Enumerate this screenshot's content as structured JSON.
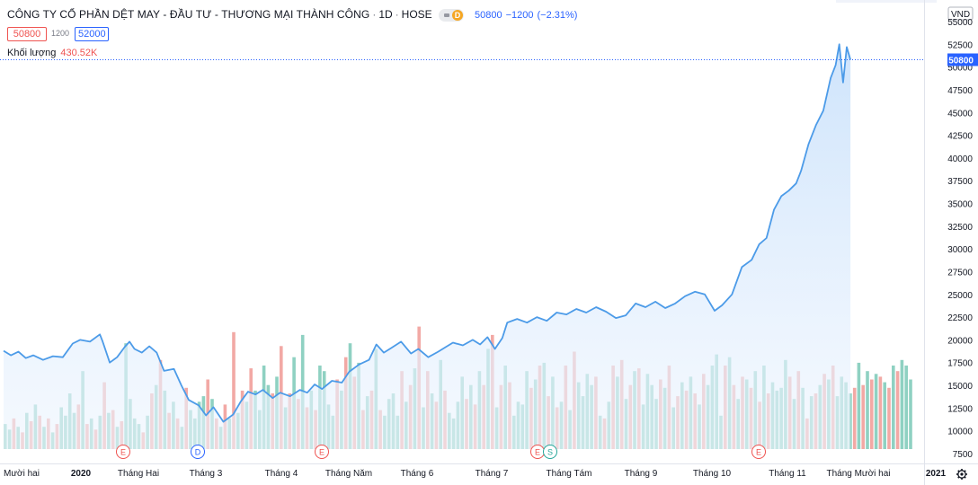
{
  "header": {
    "symbol_name": "CÔNG TY CỔ PHẦN DỆT MAY - ĐẦU TƯ - THƯƠNG MẠI THÀNH CÔNG",
    "interval": "1D",
    "exchange": "HOSE",
    "badge": "D",
    "last": "50800",
    "change": "−1200",
    "change_pct": "(−2.31%)",
    "bid": "50800",
    "spread": "1200",
    "ask": "52000",
    "volume_label": "Khối lượng",
    "volume_value": "430.52K"
  },
  "price_axis": {
    "currency": "VND",
    "current_price_label": "50800",
    "ticks": [
      "55000",
      "52500",
      "50000",
      "47500",
      "45000",
      "42500",
      "40000",
      "37500",
      "35000",
      "32500",
      "30000",
      "27500",
      "25000",
      "22500",
      "20000",
      "17500",
      "15000",
      "12500",
      "10000",
      "7500"
    ]
  },
  "time_axis": {
    "labels": [
      "Mười hai",
      "2020",
      "Tháng Hai",
      "Tháng 3",
      "Tháng 4",
      "Tháng Năm",
      "Tháng 6",
      "Tháng 7",
      "Tháng Tám",
      "Tháng 9",
      "Tháng 10",
      "Tháng 11",
      "Tháng Mười hai",
      "2021"
    ]
  },
  "events": [
    "E",
    "D",
    "E",
    "E",
    "S",
    "E"
  ],
  "colors": {
    "line": "#4c9be8",
    "area_top": "#c9e1fb",
    "area_bottom": "#eef5fe",
    "vol_up": "#8fd1c2",
    "vol_down": "#f2a9a5",
    "quote_blue": "#2962ff",
    "red": "#ef5350"
  },
  "chart_data": {
    "type": "line",
    "title": "CÔNG TY CỔ PHẦN DỆT MAY - ĐẦU TƯ - THƯƠNG MẠI THÀNH CÔNG · 1D · HOSE",
    "xlabel": "",
    "ylabel": "",
    "ylim": [
      7500,
      55000
    ],
    "grid": false,
    "x": [
      "2019-12",
      "2020-01",
      "2020-02",
      "2020-03",
      "2020-04",
      "2020-05",
      "2020-06",
      "2020-07",
      "2020-08",
      "2020-09",
      "2020-10",
      "2020-11",
      "2020-12",
      "2021-01"
    ],
    "price_path": [
      [
        0,
        18800
      ],
      [
        0.3,
        18300
      ],
      [
        0.6,
        18700
      ],
      [
        0.9,
        18000
      ],
      [
        1.2,
        18300
      ],
      [
        1.6,
        17800
      ],
      [
        2.0,
        18200
      ],
      [
        2.4,
        18100
      ],
      [
        2.8,
        19600
      ],
      [
        3.1,
        20000
      ],
      [
        3.5,
        19800
      ],
      [
        3.9,
        20600
      ],
      [
        4.0,
        19900
      ],
      [
        4.3,
        17500
      ],
      [
        4.6,
        18100
      ],
      [
        4.9,
        19200
      ],
      [
        5.1,
        19800
      ],
      [
        5.3,
        19000
      ],
      [
        5.6,
        18600
      ],
      [
        5.9,
        19300
      ],
      [
        6.2,
        18600
      ],
      [
        6.5,
        16600
      ],
      [
        6.9,
        16800
      ],
      [
        7.2,
        15000
      ],
      [
        7.5,
        13400
      ],
      [
        7.9,
        12800
      ],
      [
        8.2,
        11700
      ],
      [
        8.5,
        12600
      ],
      [
        8.9,
        11000
      ],
      [
        9.3,
        11800
      ],
      [
        9.6,
        13200
      ],
      [
        9.9,
        14300
      ],
      [
        10.2,
        14000
      ],
      [
        10.5,
        14500
      ],
      [
        10.9,
        13600
      ],
      [
        11.2,
        14200
      ],
      [
        11.6,
        13800
      ],
      [
        12.0,
        14500
      ],
      [
        12.3,
        14200
      ],
      [
        12.6,
        15100
      ],
      [
        12.9,
        14600
      ],
      [
        13.3,
        15500
      ],
      [
        13.7,
        15300
      ],
      [
        14.0,
        16500
      ],
      [
        14.4,
        17300
      ],
      [
        14.8,
        17800
      ],
      [
        15.1,
        19500
      ],
      [
        15.4,
        18600
      ],
      [
        15.7,
        19100
      ],
      [
        16.1,
        19800
      ],
      [
        16.5,
        18500
      ],
      [
        16.8,
        19000
      ],
      [
        17.2,
        18100
      ],
      [
        17.6,
        18700
      ],
      [
        17.9,
        19200
      ],
      [
        18.2,
        19700
      ],
      [
        18.6,
        19400
      ],
      [
        19.0,
        20000
      ],
      [
        19.3,
        19500
      ],
      [
        19.6,
        20300
      ],
      [
        19.9,
        19000
      ],
      [
        20.2,
        20200
      ],
      [
        20.4,
        21900
      ],
      [
        20.8,
        22300
      ],
      [
        21.2,
        21900
      ],
      [
        21.6,
        22500
      ],
      [
        22.0,
        22100
      ],
      [
        22.4,
        23000
      ],
      [
        22.8,
        22800
      ],
      [
        23.2,
        23400
      ],
      [
        23.6,
        23000
      ],
      [
        24.0,
        23600
      ],
      [
        24.4,
        23100
      ],
      [
        24.8,
        22400
      ],
      [
        25.2,
        22700
      ],
      [
        25.6,
        24000
      ],
      [
        26.0,
        23600
      ],
      [
        26.4,
        24200
      ],
      [
        26.8,
        23500
      ],
      [
        27.2,
        24000
      ],
      [
        27.6,
        24800
      ],
      [
        28.0,
        25300
      ],
      [
        28.4,
        25000
      ],
      [
        28.8,
        23200
      ],
      [
        29.1,
        23800
      ],
      [
        29.5,
        25000
      ],
      [
        29.9,
        28000
      ],
      [
        30.3,
        28800
      ],
      [
        30.6,
        30500
      ],
      [
        30.9,
        31200
      ],
      [
        31.2,
        34300
      ],
      [
        31.5,
        35800
      ],
      [
        31.8,
        36400
      ],
      [
        32.1,
        37200
      ],
      [
        32.3,
        38600
      ],
      [
        32.6,
        41500
      ],
      [
        32.9,
        43600
      ],
      [
        33.2,
        45200
      ],
      [
        33.5,
        48800
      ],
      [
        33.7,
        50200
      ],
      [
        33.85,
        52500
      ],
      [
        34.0,
        48300
      ],
      [
        34.15,
        52200
      ],
      [
        34.3,
        50800
      ]
    ],
    "volume_k": [
      90,
      70,
      110,
      80,
      60,
      130,
      100,
      160,
      120,
      80,
      110,
      60,
      90,
      150,
      120,
      200,
      130,
      160,
      280,
      90,
      110,
      70,
      120,
      240,
      130,
      140,
      80,
      100,
      380,
      180,
      110,
      90,
      60,
      120,
      200,
      230,
      320,
      210,
      130,
      170,
      110,
      80,
      220,
      140,
      110,
      170,
      190,
      250,
      180,
      110,
      80,
      160,
      110,
      420,
      130,
      210,
      170,
      290,
      210,
      140,
      300,
      230,
      200,
      260,
      370,
      150,
      200,
      330,
      180,
      410,
      150,
      210,
      140,
      300,
      280,
      160,
      120,
      250,
      210,
      330,
      380,
      260,
      310,
      140,
      190,
      210,
      360,
      140,
      120,
      180,
      200,
      120,
      280,
      170,
      230,
      290,
      440,
      150,
      280,
      200,
      170,
      320,
      210,
      130,
      110,
      170,
      260,
      180,
      230,
      160,
      280,
      230,
      360,
      410,
      150,
      230,
      300,
      240,
      120,
      170,
      160,
      280,
      220,
      250,
      300,
      310,
      190,
      260,
      150,
      170,
      300,
      140,
      350,
      240,
      190,
      270,
      230,
      260,
      120,
      110,
      170,
      300,
      260,
      320,
      180,
      230,
      280,
      290,
      160,
      270,
      230,
      180,
      250,
      220,
      300,
      150,
      190,
      240,
      210,
      260,
      200,
      160,
      270,
      230,
      300,
      340,
      120,
      300,
      330,
      230,
      180,
      260,
      250,
      220,
      280,
      170,
      300,
      200,
      240,
      210,
      220,
      320,
      260,
      180,
      280,
      220,
      110,
      190,
      200,
      230,
      270,
      250,
      300,
      190,
      260,
      240,
      200,
      220,
      310,
      230,
      280,
      250,
      270,
      260,
      240,
      220,
      300,
      280,
      320,
      300,
      250
    ],
    "volume_last": "430.52K"
  }
}
